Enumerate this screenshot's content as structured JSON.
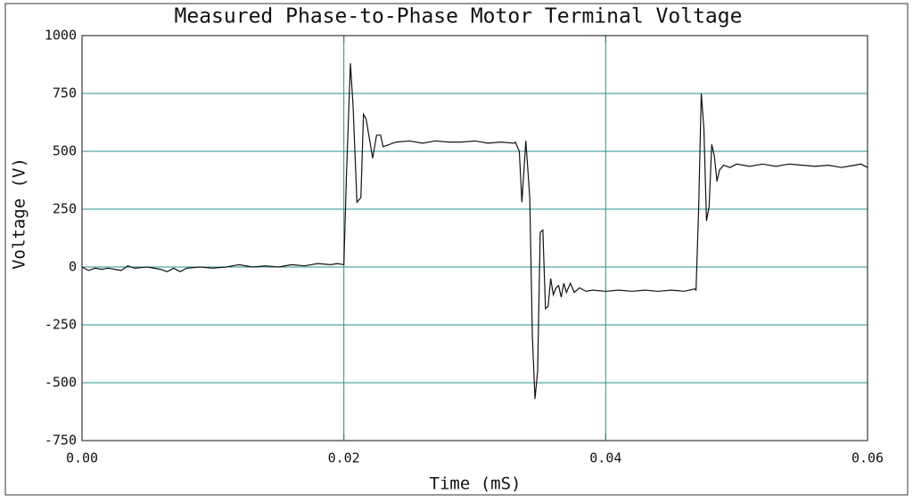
{
  "chart_data": {
    "type": "line",
    "title": "Measured Phase-to-Phase Motor Terminal Voltage",
    "x_label": "Time (mS)",
    "y_label": "Voltage (V)",
    "xlim": [
      0,
      0.06
    ],
    "ylim": [
      -750,
      1000
    ],
    "xticks": [
      {
        "value": 0,
        "label": "0.00"
      },
      0.02,
      0.04,
      0.06
    ],
    "yticks": [
      -750,
      -500,
      -250,
      0,
      250,
      500,
      750,
      1000
    ],
    "grid": true,
    "grid_color": "#2a8f8f",
    "color": "#111111",
    "x": [
      0,
      0.0005,
      0.001,
      0.0015,
      0.002,
      0.0025,
      0.003,
      0.0035,
      0.004,
      0.005,
      0.006,
      0.0065,
      0.007,
      0.0075,
      0.008,
      0.009,
      0.01,
      0.011,
      0.0115,
      0.012,
      0.013,
      0.014,
      0.015,
      0.016,
      0.017,
      0.018,
      0.019,
      0.0195,
      0.02,
      0.0202,
      0.0205,
      0.0207,
      0.021,
      0.0213,
      0.0215,
      0.0217,
      0.0222,
      0.0225,
      0.0228,
      0.023,
      0.0235,
      0.024,
      0.025,
      0.026,
      0.027,
      0.028,
      0.029,
      0.03,
      0.031,
      0.032,
      0.033,
      0.0331,
      0.0334,
      0.0336,
      0.0339,
      0.0342,
      0.0344,
      0.0346,
      0.0348,
      0.035,
      0.0352,
      0.0354,
      0.0356,
      0.0358,
      0.036,
      0.0362,
      0.0364,
      0.0366,
      0.0368,
      0.037,
      0.0373,
      0.0376,
      0.038,
      0.0385,
      0.039,
      0.04,
      0.041,
      0.042,
      0.043,
      0.044,
      0.045,
      0.046,
      0.0468,
      0.0469,
      0.0471,
      0.0473,
      0.0475,
      0.0477,
      0.0479,
      0.0481,
      0.0483,
      0.0485,
      0.0487,
      0.049,
      0.0495,
      0.05,
      0.051,
      0.052,
      0.053,
      0.054,
      0.055,
      0.056,
      0.057,
      0.058,
      0.059,
      0.0595,
      0.06
    ],
    "values": [
      0,
      -15,
      -5,
      -10,
      -5,
      -10,
      -15,
      5,
      -5,
      0,
      -10,
      -20,
      -5,
      -20,
      -5,
      0,
      -5,
      0,
      5,
      10,
      0,
      5,
      0,
      10,
      5,
      15,
      10,
      15,
      10,
      400,
      880,
      700,
      280,
      300,
      660,
      640,
      470,
      570,
      570,
      520,
      530,
      540,
      545,
      535,
      545,
      540,
      540,
      545,
      535,
      540,
      535,
      540,
      500,
      280,
      545,
      300,
      -300,
      -570,
      -450,
      150,
      160,
      -180,
      -170,
      -50,
      -120,
      -90,
      -80,
      -130,
      -70,
      -110,
      -70,
      -110,
      -90,
      -105,
      -100,
      -105,
      -100,
      -105,
      -100,
      -105,
      -100,
      -105,
      -95,
      -100,
      250,
      750,
      600,
      200,
      260,
      530,
      480,
      370,
      420,
      440,
      430,
      445,
      435,
      445,
      435,
      445,
      440,
      435,
      440,
      430,
      440,
      445,
      430
    ]
  }
}
